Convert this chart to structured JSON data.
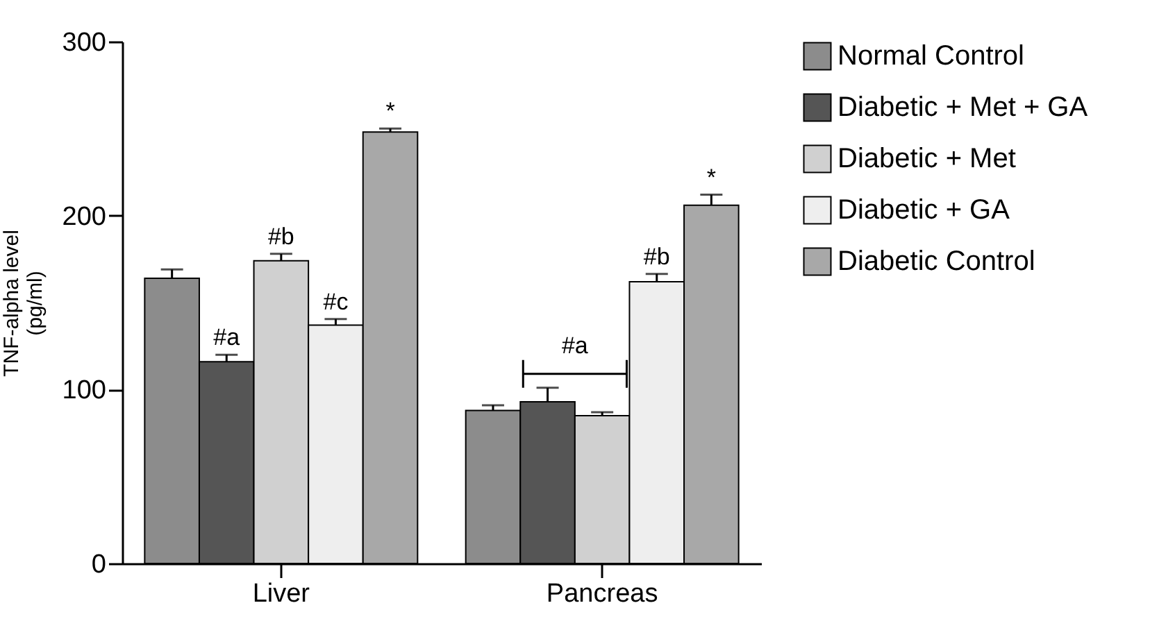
{
  "chart_data": {
    "type": "bar",
    "ylabel": "TNF-alpha level\n(pg/ml)",
    "categories": [
      "Liver",
      "Pancreas"
    ],
    "series": [
      {
        "name": "Normal Control",
        "color": "#8c8c8c",
        "values": [
          164,
          88
        ],
        "errors": [
          5,
          3
        ],
        "value_labels": [
          null,
          null
        ]
      },
      {
        "name": "Diabetic + Met + GA",
        "color": "#555555",
        "values": [
          116,
          93
        ],
        "errors": [
          4,
          8
        ],
        "value_labels": [
          "#a",
          null
        ]
      },
      {
        "name": "Diabetic + Met",
        "color": "#d0d0d0",
        "values": [
          174,
          85
        ],
        "errors": [
          4,
          2
        ],
        "value_labels": [
          "#b",
          null
        ]
      },
      {
        "name": "Diabetic + GA",
        "color": "#eeeeee",
        "values": [
          137,
          162
        ],
        "errors": [
          3.5,
          4.5
        ],
        "value_labels": [
          "#c",
          "#b"
        ]
      },
      {
        "name": "Diabetic Control",
        "color": "#a8a8a8",
        "values": [
          248,
          206
        ],
        "errors": [
          2,
          6
        ],
        "value_labels": [
          "*",
          "*"
        ]
      }
    ],
    "annotations": [
      "#a"
    ],
    "ylim": [
      0,
      300
    ],
    "yticks": [
      0,
      100,
      200,
      300
    ],
    "grid": false,
    "legend": "top right"
  }
}
